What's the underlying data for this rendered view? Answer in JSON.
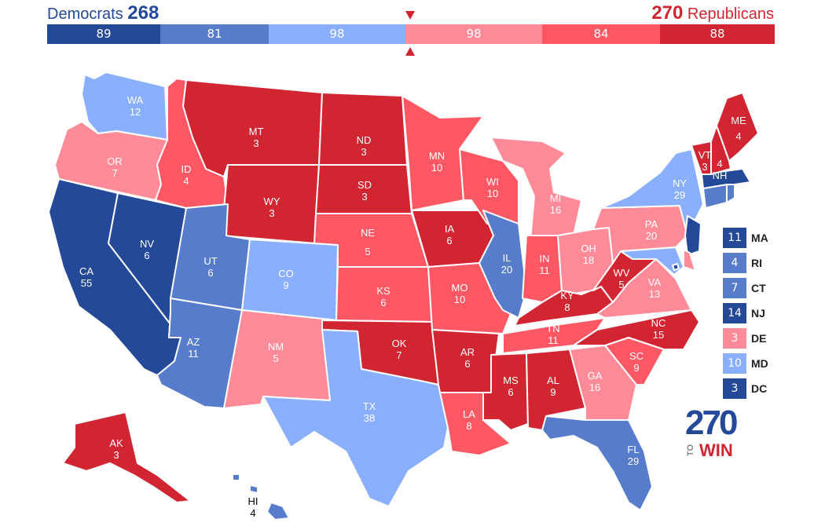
{
  "header": {
    "dem_label": "Democrats",
    "dem_total": "268",
    "rep_total": "270",
    "rep_label": "Republicans"
  },
  "colors": {
    "safe_d": "#244999",
    "likely_d": "#577ccc",
    "leans_d": "#8aafff",
    "leans_r": "#ff8b98",
    "likely_r": "#ff5865",
    "safe_r": "#d22532"
  },
  "bar": [
    {
      "value": "89",
      "color": "#244999"
    },
    {
      "value": "81",
      "color": "#577ccc"
    },
    {
      "value": "98",
      "color": "#8aafff"
    },
    {
      "value": "98",
      "color": "#ff8b98"
    },
    {
      "value": "84",
      "color": "#ff5865"
    },
    {
      "value": "88",
      "color": "#d22532"
    }
  ],
  "states": {
    "WA": {
      "abbr": "WA",
      "ev": "12",
      "rating": "leans_d"
    },
    "OR": {
      "abbr": "OR",
      "ev": "7",
      "rating": "leans_r"
    },
    "CA": {
      "abbr": "CA",
      "ev": "55",
      "rating": "safe_d"
    },
    "NV": {
      "abbr": "NV",
      "ev": "6",
      "rating": "safe_d"
    },
    "ID": {
      "abbr": "ID",
      "ev": "4",
      "rating": "likely_r"
    },
    "MT": {
      "abbr": "MT",
      "ev": "3",
      "rating": "safe_r"
    },
    "WY": {
      "abbr": "WY",
      "ev": "3",
      "rating": "safe_r"
    },
    "UT": {
      "abbr": "UT",
      "ev": "6",
      "rating": "likely_d"
    },
    "AZ": {
      "abbr": "AZ",
      "ev": "11",
      "rating": "likely_d"
    },
    "CO": {
      "abbr": "CO",
      "ev": "9",
      "rating": "leans_d"
    },
    "NM": {
      "abbr": "NM",
      "ev": "5",
      "rating": "leans_r"
    },
    "ND": {
      "abbr": "ND",
      "ev": "3",
      "rating": "safe_r"
    },
    "SD": {
      "abbr": "SD",
      "ev": "3",
      "rating": "safe_r"
    },
    "NE": {
      "abbr": "NE",
      "ev": "5",
      "rating": "likely_r"
    },
    "KS": {
      "abbr": "KS",
      "ev": "6",
      "rating": "likely_r"
    },
    "OK": {
      "abbr": "OK",
      "ev": "7",
      "rating": "safe_r"
    },
    "TX": {
      "abbr": "TX",
      "ev": "38",
      "rating": "leans_d"
    },
    "MN": {
      "abbr": "MN",
      "ev": "10",
      "rating": "likely_r"
    },
    "IA": {
      "abbr": "IA",
      "ev": "6",
      "rating": "safe_r"
    },
    "MO": {
      "abbr": "MO",
      "ev": "10",
      "rating": "likely_r"
    },
    "AR": {
      "abbr": "AR",
      "ev": "6",
      "rating": "safe_r"
    },
    "LA": {
      "abbr": "LA",
      "ev": "8",
      "rating": "likely_r"
    },
    "WI": {
      "abbr": "WI",
      "ev": "10",
      "rating": "likely_r"
    },
    "IL": {
      "abbr": "IL",
      "ev": "20",
      "rating": "likely_d"
    },
    "MI": {
      "abbr": "MI",
      "ev": "16",
      "rating": "leans_r"
    },
    "IN": {
      "abbr": "IN",
      "ev": "11",
      "rating": "likely_r"
    },
    "OH": {
      "abbr": "OH",
      "ev": "18",
      "rating": "leans_r"
    },
    "KY": {
      "abbr": "KY",
      "ev": "8",
      "rating": "safe_r"
    },
    "TN": {
      "abbr": "TN",
      "ev": "11",
      "rating": "likely_r"
    },
    "MS": {
      "abbr": "MS",
      "ev": "6",
      "rating": "safe_r"
    },
    "AL": {
      "abbr": "AL",
      "ev": "9",
      "rating": "safe_r"
    },
    "GA": {
      "abbr": "GA",
      "ev": "16",
      "rating": "leans_r"
    },
    "FL": {
      "abbr": "FL",
      "ev": "29",
      "rating": "likely_d"
    },
    "SC": {
      "abbr": "SC",
      "ev": "9",
      "rating": "likely_r"
    },
    "NC": {
      "abbr": "NC",
      "ev": "15",
      "rating": "safe_r"
    },
    "VA": {
      "abbr": "VA",
      "ev": "13",
      "rating": "leans_r"
    },
    "WV": {
      "abbr": "WV",
      "ev": "5",
      "rating": "safe_r"
    },
    "PA": {
      "abbr": "PA",
      "ev": "20",
      "rating": "leans_r"
    },
    "NY": {
      "abbr": "NY",
      "ev": "29",
      "rating": "leans_d"
    },
    "VT": {
      "abbr": "VT",
      "ev": "3",
      "rating": "safe_r"
    },
    "NH": {
      "abbr": "NH",
      "ev": "4",
      "rating": "safe_r"
    },
    "ME": {
      "abbr": "ME",
      "ev": "4",
      "rating": "safe_r"
    },
    "AK": {
      "abbr": "AK",
      "ev": "3",
      "rating": "safe_r"
    },
    "HI": {
      "abbr": "HI",
      "ev": "4",
      "rating": "likely_d"
    }
  },
  "legend": [
    {
      "ev": "11",
      "state": "MA",
      "color": "#244999"
    },
    {
      "ev": "4",
      "state": "RI",
      "color": "#577ccc"
    },
    {
      "ev": "7",
      "state": "CT",
      "color": "#577ccc"
    },
    {
      "ev": "14",
      "state": "NJ",
      "color": "#244999"
    },
    {
      "ev": "3",
      "state": "DE",
      "color": "#ff8b98"
    },
    {
      "ev": "10",
      "state": "MD",
      "color": "#8aafff"
    },
    {
      "ev": "3",
      "state": "DC",
      "color": "#244999"
    }
  ],
  "logo": {
    "number": "270",
    "to": "TO",
    "win": "WIN"
  }
}
